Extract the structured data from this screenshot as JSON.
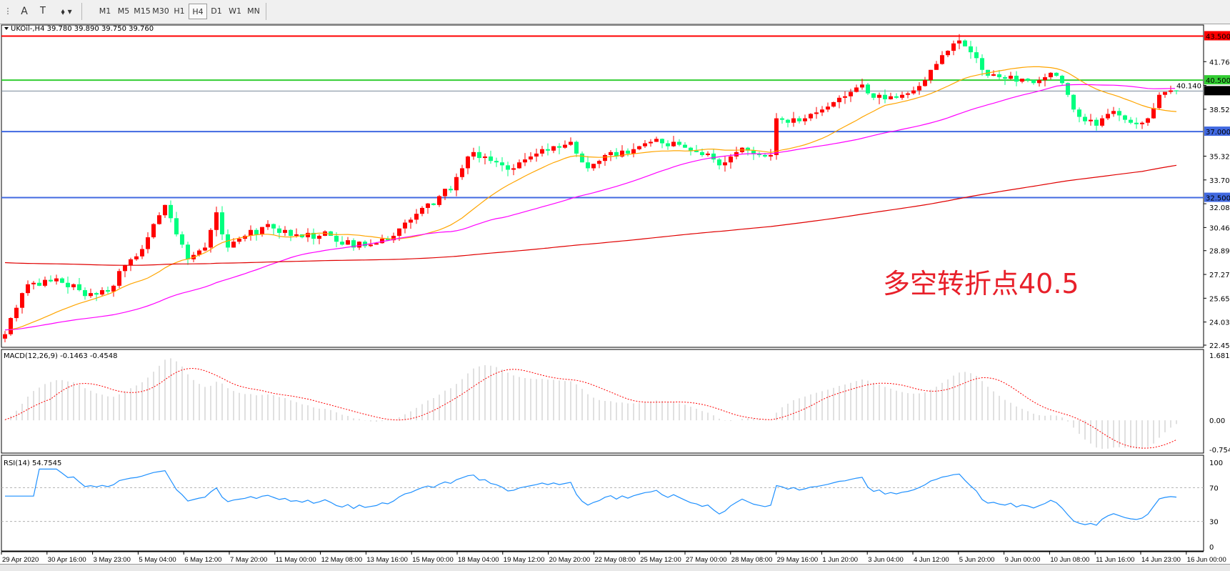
{
  "toolbar": {
    "tools": [
      {
        "icon": "period-separator-icon"
      },
      {
        "icon": "text-icon",
        "glyph": "A"
      },
      {
        "icon": "text-label-icon",
        "glyph": "T"
      },
      {
        "icon": "arrows-icon",
        "glyph": "⬧"
      }
    ],
    "timeframes": [
      "M1",
      "M5",
      "M15",
      "M30",
      "H1",
      "H4",
      "D1",
      "W1",
      "MN"
    ],
    "selected_timeframe": "H4"
  },
  "chart_data": [
    {
      "type": "candlestick",
      "title": "UKOil-,H4  39.780 39.890 39.750 39.760",
      "symbol": "UKOil-",
      "timeframe": "H4",
      "ohlc_last": {
        "open": 39.78,
        "high": 39.89,
        "low": 39.75,
        "close": 39.76
      },
      "colors": {
        "bull": "#ff0000",
        "bear": "#00ff7f",
        "ma_fast": "#ffa500",
        "ma_mid": "#ff00ff",
        "ma_slow": "#e00000"
      },
      "closes": [
        23.2,
        24.3,
        25.0,
        26.0,
        26.6,
        26.7,
        26.5,
        26.9,
        26.8,
        27.0,
        26.7,
        26.4,
        26.6,
        26.2,
        25.8,
        26.0,
        25.9,
        26.2,
        26.1,
        26.5,
        27.5,
        27.9,
        28.3,
        28.5,
        29.0,
        29.8,
        30.7,
        31.3,
        32.0,
        31.1,
        30.0,
        29.3,
        28.3,
        28.6,
        28.9,
        29.1,
        30.3,
        31.5,
        30.0,
        29.1,
        29.5,
        29.7,
        29.9,
        30.3,
        30.0,
        30.5,
        30.7,
        30.4,
        30.1,
        30.3,
        29.9,
        30.0,
        29.8,
        30.1,
        29.7,
        29.9,
        30.2,
        29.9,
        29.5,
        29.3,
        29.6,
        29.1,
        29.5,
        29.2,
        29.3,
        29.4,
        29.7,
        29.6,
        29.9,
        30.4,
        30.8,
        31.0,
        31.4,
        31.8,
        32.1,
        32.0,
        32.6,
        33.1,
        33.0,
        33.9,
        34.5,
        35.3,
        35.6,
        35.2,
        35.3,
        35.0,
        34.9,
        34.7,
        34.4,
        34.5,
        34.9,
        35.1,
        35.3,
        35.5,
        35.8,
        35.7,
        36.0,
        35.9,
        36.1,
        36.3,
        35.5,
        34.9,
        34.5,
        34.8,
        35.0,
        35.4,
        35.6,
        35.3,
        35.7,
        35.5,
        35.8,
        36.0,
        36.2,
        36.3,
        36.5,
        36.2,
        36.0,
        36.3,
        36.1,
        35.9,
        35.7,
        35.6,
        35.4,
        35.5,
        35.1,
        34.7,
        34.9,
        35.3,
        35.6,
        35.9,
        35.7,
        35.5,
        35.4,
        35.3,
        35.4,
        37.9,
        37.8,
        37.6,
        37.9,
        37.7,
        37.9,
        38.2,
        38.3,
        38.5,
        38.7,
        39.0,
        39.3,
        39.4,
        39.7,
        40.0,
        40.2,
        39.6,
        39.3,
        39.5,
        39.2,
        39.4,
        39.3,
        39.5,
        39.6,
        39.8,
        40.1,
        40.5,
        41.2,
        41.6,
        42.2,
        42.5,
        43.0,
        43.2,
        42.8,
        42.4,
        42.0,
        41.2,
        40.8,
        40.9,
        40.7,
        40.6,
        40.8,
        40.4,
        40.6,
        40.5,
        40.3,
        40.5,
        40.7,
        41.0,
        40.8,
        40.3,
        39.5,
        38.5,
        38.0,
        37.7,
        37.8,
        37.4,
        37.9,
        38.2,
        38.4,
        38.1,
        37.8,
        37.6,
        37.5,
        37.6,
        37.9,
        38.6,
        39.5,
        39.7,
        39.8,
        39.76
      ],
      "moving_averages": [
        {
          "color": "#ffa500",
          "period": 20
        },
        {
          "color": "#ff00ff",
          "period": 50
        },
        {
          "color": "#e00000",
          "period": 200
        }
      ],
      "ylim": [
        22.455,
        44.2
      ],
      "y_ticks": [
        "41.760",
        "40.140",
        "38.520",
        "35.325",
        "33.705",
        "32.085",
        "30.465",
        "28.890",
        "27.270",
        "25.650",
        "24.030",
        "22.455"
      ],
      "y_tick_values": [
        41.76,
        40.14,
        38.52,
        35.325,
        33.705,
        32.085,
        30.465,
        28.89,
        27.27,
        25.65,
        24.03,
        22.455
      ],
      "levels": [
        {
          "price": 43.5,
          "label": "43.500",
          "color": "#ff0000"
        },
        {
          "price": 40.5,
          "label": "40.500",
          "color": "#32cd32"
        },
        {
          "price": 37.0,
          "label": "37.000",
          "color": "#4169e1"
        },
        {
          "price": 32.5,
          "label": "32.500",
          "color": "#4169e1"
        }
      ],
      "bid": {
        "price": 39.76,
        "label": "39.760",
        "color": "#000000",
        "line_color": "#778899"
      },
      "annotation": "多空转折点40.5",
      "x_ticks": [
        "29 Apr 2020",
        "30 Apr 16:00",
        "3 May 23:00",
        "5 May 04:00",
        "6 May 12:00",
        "7 May 20:00",
        "11 May 00:00",
        "12 May 08:00",
        "13 May 16:00",
        "15 May 00:00",
        "18 May 04:00",
        "19 May 12:00",
        "20 May 20:00",
        "22 May 08:00",
        "25 May 12:00",
        "27 May 00:00",
        "28 May 08:00",
        "29 May 16:00",
        "1 Jun 20:00",
        "3 Jun 04:00",
        "4 Jun 12:00",
        "5 Jun 20:00",
        "9 Jun 00:00",
        "10 Jun 08:00",
        "11 Jun 16:00",
        "14 Jun 23:00",
        "16 Jun 00:00"
      ]
    },
    {
      "type": "bar",
      "title": "MACD(12,26,9) -0.1463 -0.4548",
      "ylim": [
        -0.7544,
        1.6816
      ],
      "y_ticks": [
        "1.6816",
        "0.00",
        "-0.7544"
      ],
      "colors": {
        "histogram": "#c0c0c0",
        "signal": "#ff0000"
      }
    },
    {
      "type": "line",
      "title": "RSI(14) 54.7545",
      "ylim": [
        0,
        100
      ],
      "y_ticks": [
        "100",
        "70",
        "30",
        "0"
      ],
      "levels": [
        70,
        30
      ],
      "colors": {
        "line": "#1e90ff"
      }
    }
  ]
}
